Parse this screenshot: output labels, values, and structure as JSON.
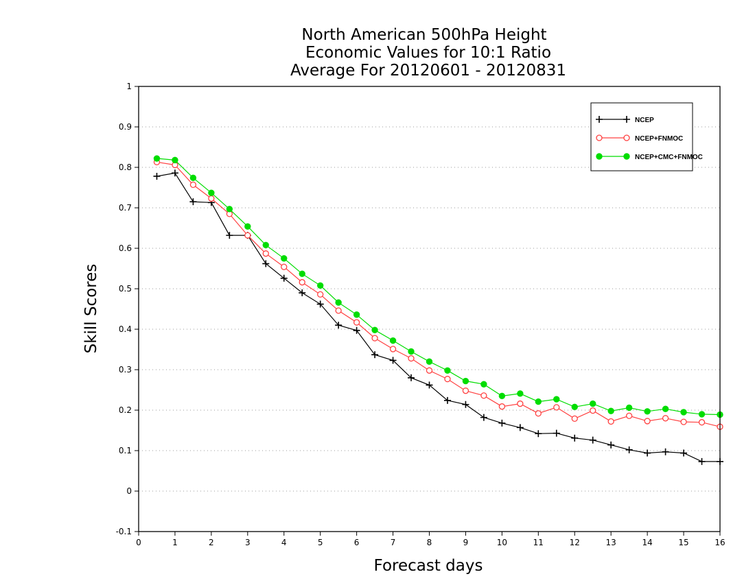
{
  "chart_data": {
    "type": "line",
    "title_lines": [
      "North American 500hPa Height",
      "Economic Values for 10:1 Ratio",
      "Average For 20120601 - 20120831"
    ],
    "xlabel": "Forecast days",
    "ylabel": "Skill Scores",
    "xlim": [
      0,
      16
    ],
    "ylim": [
      -0.1,
      1
    ],
    "xticks": [
      0,
      1,
      2,
      3,
      4,
      5,
      6,
      7,
      8,
      9,
      10,
      11,
      12,
      13,
      14,
      15,
      16
    ],
    "yticks": [
      -0.1,
      0,
      0.1,
      0.2,
      0.3,
      0.4,
      0.5,
      0.6,
      0.7,
      0.8,
      0.9,
      1
    ],
    "ytick_labels": [
      "-0.1",
      "0",
      "0.1",
      "0.2",
      "0.3",
      "0.4",
      "0.5",
      "0.6",
      "0.7",
      "0.8",
      "0.9",
      "1"
    ],
    "grid": "horizontal dotted",
    "legend_position": "top-right",
    "x": [
      0.5,
      1,
      1.5,
      2,
      2.5,
      3,
      3.5,
      4,
      4.5,
      5,
      5.5,
      6,
      6.5,
      7,
      7.5,
      8,
      8.5,
      9,
      9.5,
      10,
      10.5,
      11,
      11.5,
      12,
      12.5,
      13,
      13.5,
      14,
      14.5,
      15,
      15.5,
      16
    ],
    "series": [
      {
        "name": "NCEP",
        "color": "#000000",
        "marker": "plus",
        "values": [
          0.778,
          0.786,
          0.715,
          0.713,
          0.632,
          0.632,
          0.562,
          0.526,
          0.49,
          0.462,
          0.41,
          0.397,
          0.337,
          0.323,
          0.28,
          0.262,
          0.224,
          0.214,
          0.182,
          0.168,
          0.157,
          0.142,
          0.143,
          0.131,
          0.126,
          0.114,
          0.102,
          0.094,
          0.097,
          0.094,
          0.073,
          0.073
        ]
      },
      {
        "name": "NCEP+FNMOC",
        "color": "#ff4040",
        "marker": "open-circle",
        "values": [
          0.813,
          0.806,
          0.757,
          0.723,
          0.685,
          0.632,
          0.587,
          0.554,
          0.516,
          0.486,
          0.446,
          0.417,
          0.378,
          0.351,
          0.328,
          0.298,
          0.277,
          0.248,
          0.236,
          0.209,
          0.216,
          0.192,
          0.207,
          0.179,
          0.199,
          0.172,
          0.186,
          0.173,
          0.18,
          0.171,
          0.17,
          0.159
        ]
      },
      {
        "name": "NCEP+CMC+FNMOC",
        "color": "#00dd00",
        "marker": "filled-circle",
        "values": [
          0.822,
          0.818,
          0.774,
          0.737,
          0.697,
          0.654,
          0.608,
          0.575,
          0.537,
          0.508,
          0.466,
          0.436,
          0.398,
          0.372,
          0.345,
          0.32,
          0.298,
          0.272,
          0.264,
          0.235,
          0.241,
          0.221,
          0.227,
          0.208,
          0.216,
          0.198,
          0.206,
          0.197,
          0.203,
          0.195,
          0.19,
          0.189
        ]
      }
    ]
  }
}
